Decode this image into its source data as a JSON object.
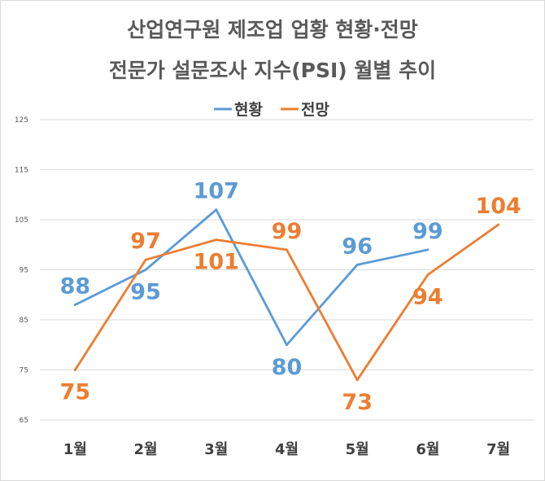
{
  "chart_data": {
    "type": "line",
    "title": "산업연구원 제조업 업황 현황·전망",
    "subtitle": "전문가 설문조사 지수(PSI) 월별 추이",
    "categories": [
      "1월",
      "2월",
      "3월",
      "4월",
      "5월",
      "6월",
      "7월"
    ],
    "ylim": [
      65,
      125
    ],
    "yticks": [
      125,
      115,
      105,
      95,
      85,
      75,
      65
    ],
    "yticks_labels": [
      "125",
      "115",
      "105",
      "95",
      "85",
      "75",
      "65"
    ],
    "grid": true,
    "legend_position": "top-center",
    "series": [
      {
        "name": "현황",
        "color": "#5b9bd5",
        "values": [
          88,
          95,
          107,
          80,
          96,
          99,
          null
        ],
        "labels": [
          "88",
          "95",
          "107",
          "80",
          "96",
          "99",
          null
        ]
      },
      {
        "name": "전망",
        "color": "#ed7d31",
        "values": [
          75,
          97,
          101,
          99,
          73,
          94,
          104
        ],
        "labels": [
          "75",
          "97",
          "101",
          "99",
          "73",
          "94",
          "104"
        ]
      }
    ]
  }
}
